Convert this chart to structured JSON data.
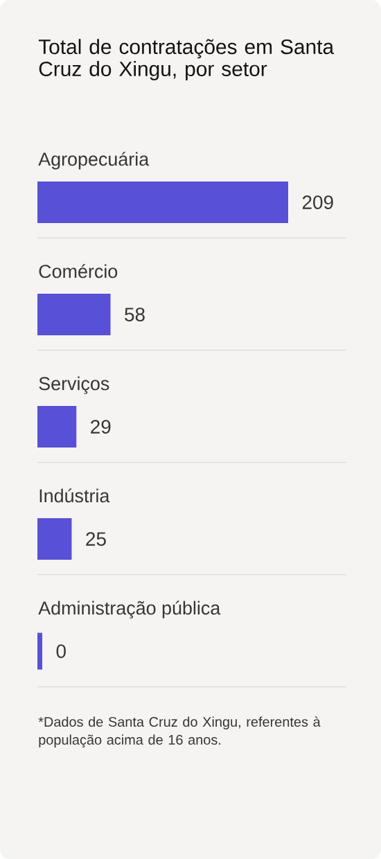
{
  "chart_data": {
    "type": "bar",
    "orientation": "horizontal",
    "title": "Total de contratações em Santa Cruz do Xingu, por setor",
    "categories": [
      "Agropecuária",
      "Comércio",
      "Serviços",
      "Indústria",
      "Administração pública"
    ],
    "values": [
      209,
      58,
      29,
      25,
      0
    ],
    "color": "#5850d6",
    "data_labels": true,
    "tick_labels": "y",
    "annotations": [
      "*Dados de Santa Cruz do Xingu, referentes à população acima de 16 anos."
    ]
  }
}
